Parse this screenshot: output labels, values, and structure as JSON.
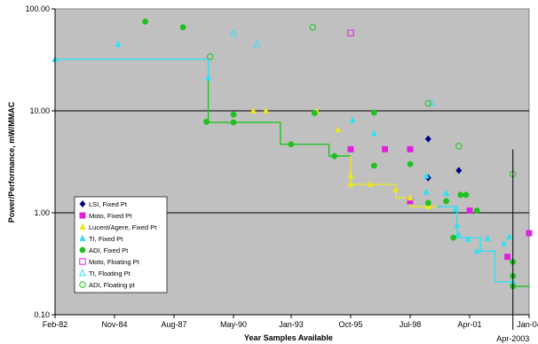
{
  "chart_data": {
    "type": "scatter",
    "title": "",
    "xlabel": "Year Samples Available",
    "ylabel": "Power/Performance, mW/MMAC",
    "y_scale": "log",
    "ylim": [
      0.1,
      100
    ],
    "y_ticks": [
      {
        "value": 100,
        "label": "100.00"
      },
      {
        "value": 10,
        "label": "10.00"
      },
      {
        "value": 1,
        "label": "1.00"
      },
      {
        "value": 0.1,
        "label": "0.10"
      }
    ],
    "xlim": [
      "1982-02",
      "2004-01"
    ],
    "x_ticks": [
      {
        "value": "1982-02",
        "label": "Feb-82"
      },
      {
        "value": "1984-11",
        "label": "Nov-84"
      },
      {
        "value": "1987-08",
        "label": "Aug-87"
      },
      {
        "value": "1990-05",
        "label": "May-90"
      },
      {
        "value": "1993-01",
        "label": "Jan-93"
      },
      {
        "value": "1995-10",
        "label": "Oct-95"
      },
      {
        "value": "1998-07",
        "label": "Jul-98"
      },
      {
        "value": "2001-04",
        "label": "Apr-01"
      },
      {
        "value": "2004-01",
        "label": "Jan-04"
      }
    ],
    "grid": "major y only",
    "background": "#c0c0c0",
    "legend_position": "lower-left inside plot",
    "series": [
      {
        "name": "LSI, Fixed Pt",
        "color": "#000080",
        "marker": "diamond-filled",
        "points": [
          {
            "x": "1999-05",
            "y": 5.3
          },
          {
            "x": "1999-05",
            "y": 2.2
          },
          {
            "x": "2000-10",
            "y": 2.6
          }
        ]
      },
      {
        "name": "Moto, Fixed Pt",
        "color": "#e020e0",
        "marker": "square-filled",
        "points": [
          {
            "x": "1995-10",
            "y": 4.2
          },
          {
            "x": "1997-05",
            "y": 4.2
          },
          {
            "x": "1998-07",
            "y": 4.2
          },
          {
            "x": "1998-07",
            "y": 1.3
          },
          {
            "x": "2001-04",
            "y": 1.05
          },
          {
            "x": "2003-01",
            "y": 0.37
          },
          {
            "x": "2004-01",
            "y": 0.63
          }
        ]
      },
      {
        "name": "Lucent/Agere, Fixed Pt",
        "color": "#e8e820",
        "marker": "triangle-filled",
        "points": [
          {
            "x": "1991-04",
            "y": 10
          },
          {
            "x": "1991-11",
            "y": 10
          },
          {
            "x": "1994-03",
            "y": 10
          },
          {
            "x": "1995-03",
            "y": 6.5
          },
          {
            "x": "1995-10",
            "y": 2.3
          },
          {
            "x": "1995-10",
            "y": 1.9
          },
          {
            "x": "1996-09",
            "y": 1.9
          },
          {
            "x": "1997-11",
            "y": 1.7
          },
          {
            "x": "1998-07",
            "y": 1.4
          },
          {
            "x": "1999-05",
            "y": 1.15
          }
        ]
      },
      {
        "name": "TI, Fixed Pt",
        "color": "#30e0f0",
        "marker": "triangle-filled",
        "points": [
          {
            "x": "1982-02",
            "y": 32
          },
          {
            "x": "1985-01",
            "y": 45
          },
          {
            "x": "1989-03",
            "y": 21
          },
          {
            "x": "1995-11",
            "y": 8.1
          },
          {
            "x": "1996-11",
            "y": 6
          },
          {
            "x": "1999-04",
            "y": 2.3
          },
          {
            "x": "1999-04",
            "y": 1.6
          },
          {
            "x": "2000-03",
            "y": 1.55
          },
          {
            "x": "2000-08",
            "y": 1.07
          },
          {
            "x": "2000-09",
            "y": 0.75
          },
          {
            "x": "2000-10",
            "y": 0.6
          },
          {
            "x": "2001-03",
            "y": 0.55
          },
          {
            "x": "2001-08",
            "y": 0.42
          },
          {
            "x": "2002-02",
            "y": 0.56
          },
          {
            "x": "2002-11",
            "y": 0.5
          },
          {
            "x": "2003-02",
            "y": 0.58
          },
          {
            "x": "2003-04",
            "y": 0.21
          }
        ]
      },
      {
        "name": "ADI, Fixed Pt",
        "color": "#20c020",
        "marker": "circle-filled",
        "points": [
          {
            "x": "1986-04",
            "y": 75
          },
          {
            "x": "1988-01",
            "y": 66
          },
          {
            "x": "1989-02",
            "y": 7.8
          },
          {
            "x": "1990-05",
            "y": 9.2
          },
          {
            "x": "1990-05",
            "y": 7.7
          },
          {
            "x": "1993-01",
            "y": 4.7
          },
          {
            "x": "1994-02",
            "y": 9.5
          },
          {
            "x": "1995-01",
            "y": 3.6
          },
          {
            "x": "1996-11",
            "y": 9.6
          },
          {
            "x": "1996-11",
            "y": 2.9
          },
          {
            "x": "1998-07",
            "y": 3
          },
          {
            "x": "1999-05",
            "y": 1.25
          },
          {
            "x": "2000-03",
            "y": 1.3
          },
          {
            "x": "2000-07",
            "y": 0.57
          },
          {
            "x": "2000-11",
            "y": 1.5
          },
          {
            "x": "2001-02",
            "y": 1.5
          },
          {
            "x": "2001-08",
            "y": 1.05
          },
          {
            "x": "2003-04",
            "y": 0.33
          },
          {
            "x": "2003-04",
            "y": 0.24
          },
          {
            "x": "2003-04",
            "y": 0.19
          }
        ]
      },
      {
        "name": "Moto, Floating Pt",
        "color": "#e020e0",
        "marker": "square-open",
        "points": [
          {
            "x": "1995-10",
            "y": 58
          }
        ]
      },
      {
        "name": "TI, Floating Pt",
        "color": "#30e0f0",
        "marker": "triangle-open",
        "points": [
          {
            "x": "1990-05",
            "y": 58
          },
          {
            "x": "1991-06",
            "y": 45
          },
          {
            "x": "1999-07",
            "y": 12
          }
        ]
      },
      {
        "name": "ADI, Floating pt",
        "color": "#20c020",
        "marker": "circle-open",
        "points": [
          {
            "x": "1989-04",
            "y": 34
          },
          {
            "x": "1994-01",
            "y": 66
          },
          {
            "x": "1999-05",
            "y": 11.8
          },
          {
            "x": "2000-10",
            "y": 4.5
          },
          {
            "x": "2003-04",
            "y": 2.4
          }
        ]
      }
    ],
    "step_lines": [
      {
        "color": "#30e0f0",
        "points": [
          {
            "x": "1982-02",
            "y": 32
          },
          {
            "x": "1989-03",
            "y": 32
          },
          {
            "x": "1989-03",
            "y": 20
          }
        ]
      },
      {
        "color": "#20c020",
        "points": [
          {
            "x": "1989-03",
            "y": 20
          },
          {
            "x": "1989-03",
            "y": 7.7
          },
          {
            "x": "1992-07",
            "y": 7.7
          },
          {
            "x": "1992-07",
            "y": 4.7
          },
          {
            "x": "1994-10",
            "y": 4.7
          },
          {
            "x": "1994-10",
            "y": 3.6
          },
          {
            "x": "1995-10",
            "y": 3.6
          }
        ]
      },
      {
        "color": "#e8e820",
        "points": [
          {
            "x": "1995-10",
            "y": 3.6
          },
          {
            "x": "1995-10",
            "y": 1.9
          },
          {
            "x": "1997-11",
            "y": 1.9
          },
          {
            "x": "1997-11",
            "y": 1.4
          },
          {
            "x": "1998-07",
            "y": 1.4
          },
          {
            "x": "1998-07",
            "y": 1.15
          },
          {
            "x": "1999-10",
            "y": 1.15
          }
        ]
      },
      {
        "color": "#30e0f0",
        "points": [
          {
            "x": "1999-10",
            "y": 1.15
          },
          {
            "x": "2000-09",
            "y": 1.15
          },
          {
            "x": "2000-09",
            "y": 0.57
          },
          {
            "x": "2001-10",
            "y": 0.57
          },
          {
            "x": "2001-10",
            "y": 0.42
          },
          {
            "x": "2002-06",
            "y": 0.42
          },
          {
            "x": "2002-06",
            "y": 0.21
          },
          {
            "x": "2003-04",
            "y": 0.21
          }
        ]
      },
      {
        "color": "#20c020",
        "points": [
          {
            "x": "2003-04",
            "y": 0.21
          },
          {
            "x": "2003-04",
            "y": 0.19
          },
          {
            "x": "2004-01",
            "y": 0.19
          }
        ]
      }
    ],
    "annotation": {
      "label": "Apr-2003",
      "x": "2003-04"
    }
  }
}
